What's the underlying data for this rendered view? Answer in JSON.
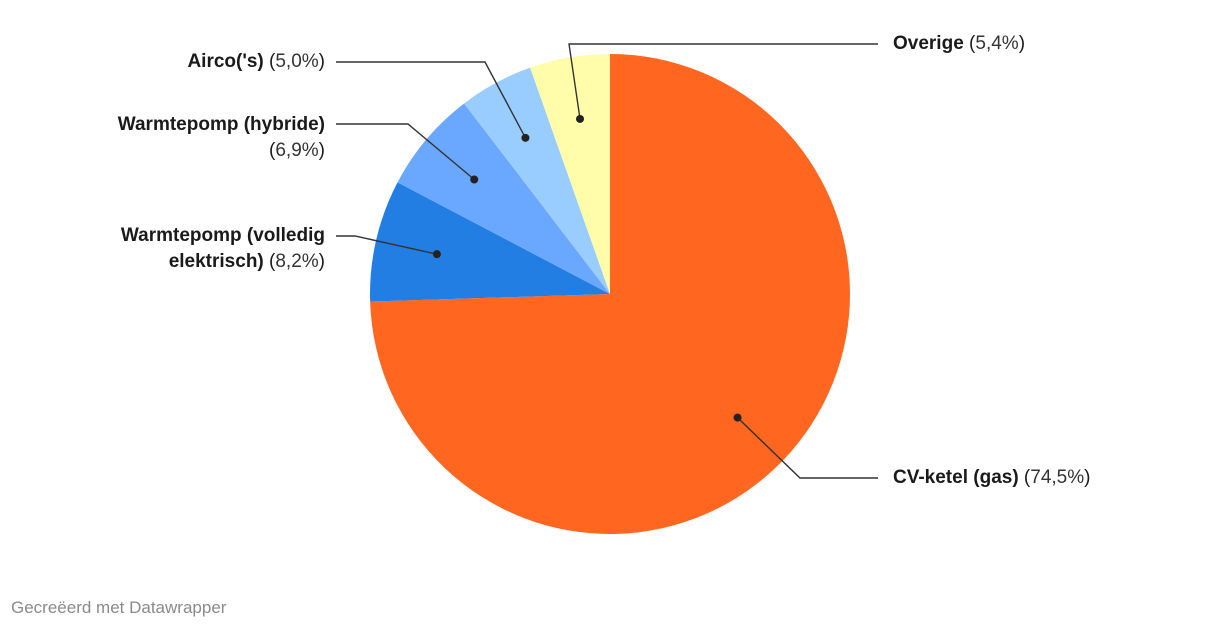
{
  "chart_data": {
    "type": "pie",
    "slices": [
      {
        "label": "CV-ketel (gas)",
        "display": "74,5%",
        "value": 74.5,
        "color": "#ff6720"
      },
      {
        "label": "Warmtepomp (volledig elektrisch)",
        "display": "8,2%",
        "value": 8.2,
        "color": "#227ee3"
      },
      {
        "label": "Warmtepomp (hybride)",
        "display": "6,9%",
        "value": 6.9,
        "color": "#6aa8ff"
      },
      {
        "label": "Airco('s)",
        "display": "5,0%",
        "value": 5.0,
        "color": "#99cdff"
      },
      {
        "label": "Overige",
        "display": "5,4%",
        "value": 5.4,
        "color": "#fffcaa"
      }
    ]
  },
  "footer": {
    "credit": "Gecreëerd met Datawrapper"
  }
}
